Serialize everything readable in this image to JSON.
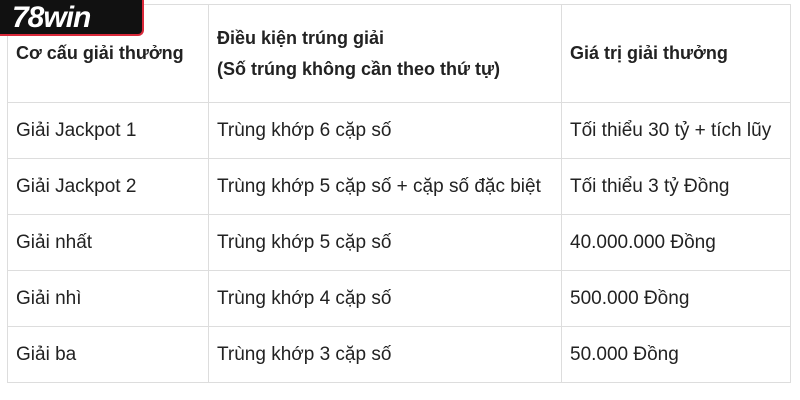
{
  "logo": {
    "text": "78win",
    "colors": {
      "background": "#111111",
      "border": "#d9293a"
    }
  },
  "table": {
    "headers": [
      "Cơ cấu giải thưởng",
      "Điều kiện trúng giải",
      "(Số trúng không cần theo thứ tự)",
      "Giá trị giải thưởng"
    ],
    "rows": [
      [
        "Giải Jackpot 1",
        "Trùng khớp 6 cặp số",
        "Tối thiểu 30 tỷ + tích lũy"
      ],
      [
        "Giải Jackpot 2",
        "Trùng khớp 5 cặp số + cặp số đặc biệt",
        "Tối thiểu 3 tỷ Đồng"
      ],
      [
        "Giải nhất",
        "Trùng khớp 5 cặp số",
        "40.000.000 Đồng"
      ],
      [
        "Giải nhì",
        "Trùng khớp 4 cặp số",
        "500.000 Đồng"
      ],
      [
        "Giải ba",
        "Trùng khớp 3 cặp số",
        "50.000 Đồng"
      ]
    ]
  }
}
